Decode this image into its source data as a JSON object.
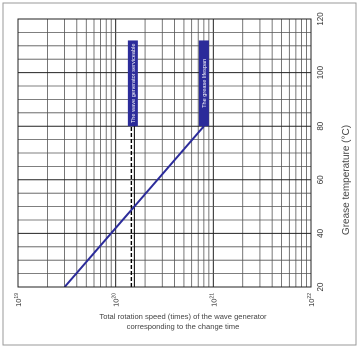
{
  "chart_data": {
    "type": "line",
    "xscale": "log",
    "xlim": [
      1e+19,
      1e+22
    ],
    "ylim": [
      20,
      120
    ],
    "x_ticks": [
      {
        "value": 1e+19,
        "base": "10",
        "exp": "19"
      },
      {
        "value": 1e+20,
        "base": "10",
        "exp": "20"
      },
      {
        "value": 1e+21,
        "base": "10",
        "exp": "21"
      },
      {
        "value": 1e+22,
        "base": "10",
        "exp": "22"
      }
    ],
    "y_ticks": [
      20,
      40,
      60,
      80,
      100,
      120
    ],
    "xlabel": [
      "Total rotation speed (times) of the wave generator",
      "corresponding to the change time"
    ],
    "ylabel": "Grease temperature (°C)",
    "series": [
      {
        "values": [
          [
            3e+19,
            20
          ],
          [
            8e+20,
            80
          ]
        ],
        "color": "#2b2b9a"
      }
    ],
    "reference_line": {
      "x": 1.5e+20,
      "color": "#000000"
    },
    "annotations": [
      {
        "text": "The wave generator serviceable",
        "x": 1.5e+20,
        "y_from": 20,
        "y_to": 112
      },
      {
        "text": "The grease lifespan",
        "x": 8e+20,
        "y_from": 80,
        "y_to": 112
      }
    ],
    "grid": true
  }
}
